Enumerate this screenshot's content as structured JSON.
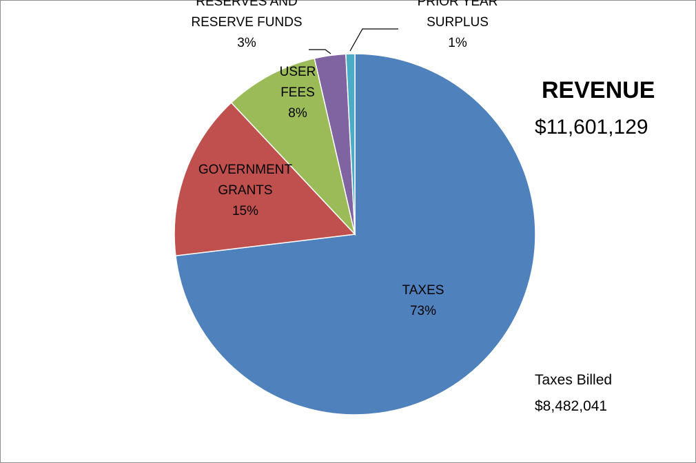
{
  "chart_data": {
    "type": "pie",
    "title": "REVENUE",
    "subtitle": "$11,601,129",
    "start_angle_deg": 0,
    "direction": "clockwise",
    "slices": [
      {
        "line1": "TAXES",
        "line2": "",
        "pct_label": "73%",
        "value": 73.1,
        "color": "#4F81BD"
      },
      {
        "line1": "GOVERNMENT",
        "line2": "GRANTS",
        "pct_label": "15%",
        "value": 14.9,
        "color": "#C0504D"
      },
      {
        "line1": "USER",
        "line2": "FEES",
        "pct_label": "8%",
        "value": 8.4,
        "color": "#9BBB59"
      },
      {
        "line1": "RESERVES AND",
        "line2": "RESERVE FUNDS",
        "pct_label": "3%",
        "value": 2.8,
        "color": "#8064A2"
      },
      {
        "line1": "PRIOR YEAR",
        "line2": "SURPLUS",
        "pct_label": "1%",
        "value": 0.8,
        "color": "#4BACC6"
      }
    ],
    "annotation": {
      "label": "Taxes Billed",
      "value": "$8,482,041"
    }
  }
}
